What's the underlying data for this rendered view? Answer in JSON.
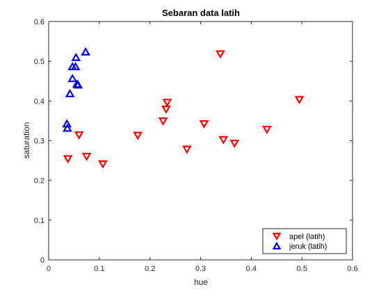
{
  "chart_data": {
    "type": "scatter",
    "title": "Sebaran data latih",
    "xlabel": "hue",
    "ylabel": "saturation",
    "xlim": [
      0,
      0.6
    ],
    "ylim": [
      0,
      0.6
    ],
    "xticks": [
      "0",
      "0.1",
      "0.2",
      "0.3",
      "0.4",
      "0.5",
      "0.6"
    ],
    "yticks": [
      "0",
      "0.1",
      "0.2",
      "0.3",
      "0.4",
      "0.5",
      "0.6"
    ],
    "grid": false,
    "legend_position": "bottom-right",
    "series": [
      {
        "name": "apel (latih)",
        "marker": "triangle-down",
        "color": "#ff0000",
        "x": [
          0.038,
          0.06,
          0.075,
          0.107,
          0.176,
          0.226,
          0.232,
          0.234,
          0.273,
          0.307,
          0.339,
          0.345,
          0.367,
          0.431,
          0.495
        ],
        "y": [
          0.254,
          0.314,
          0.26,
          0.241,
          0.313,
          0.349,
          0.379,
          0.396,
          0.278,
          0.342,
          0.518,
          0.302,
          0.293,
          0.328,
          0.403
        ]
      },
      {
        "name": "jeruk (latih)",
        "marker": "triangle-up",
        "color": "#0000ff",
        "x": [
          0.036,
          0.037,
          0.042,
          0.047,
          0.047,
          0.053,
          0.054,
          0.056,
          0.058,
          0.073
        ],
        "y": [
          0.343,
          0.332,
          0.419,
          0.457,
          0.487,
          0.487,
          0.51,
          0.443,
          0.441,
          0.524
        ]
      }
    ]
  }
}
